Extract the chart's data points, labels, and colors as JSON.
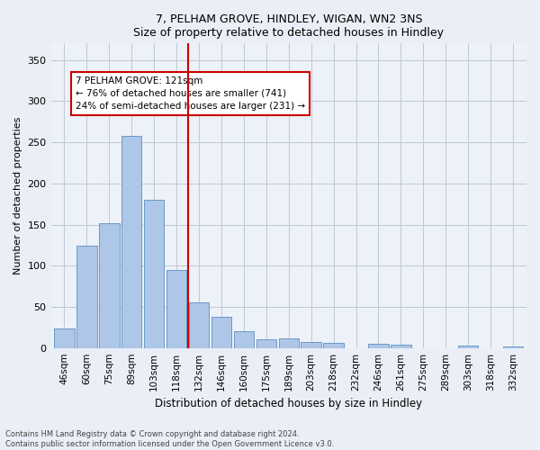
{
  "title1": "7, PELHAM GROVE, HINDLEY, WIGAN, WN2 3NS",
  "title2": "Size of property relative to detached houses in Hindley",
  "xlabel": "Distribution of detached houses by size in Hindley",
  "ylabel": "Number of detached properties",
  "categories": [
    "46sqm",
    "60sqm",
    "75sqm",
    "89sqm",
    "103sqm",
    "118sqm",
    "132sqm",
    "146sqm",
    "160sqm",
    "175sqm",
    "189sqm",
    "203sqm",
    "218sqm",
    "232sqm",
    "246sqm",
    "261sqm",
    "275sqm",
    "289sqm",
    "303sqm",
    "318sqm",
    "332sqm"
  ],
  "values": [
    24,
    124,
    152,
    258,
    180,
    95,
    55,
    38,
    20,
    11,
    12,
    7,
    6,
    0,
    5,
    4,
    0,
    0,
    3,
    0,
    2
  ],
  "bar_color": "#aec6e8",
  "bar_edge_color": "#5a8fc0",
  "vline_x_index": 5.5,
  "vline_color": "#cc0000",
  "annotation_text": "7 PELHAM GROVE: 121sqm\n← 76% of detached houses are smaller (741)\n24% of semi-detached houses are larger (231) →",
  "annotation_box_color": "#ffffff",
  "annotation_box_edge_color": "#cc0000",
  "ylim": [
    0,
    370
  ],
  "yticks": [
    0,
    50,
    100,
    150,
    200,
    250,
    300,
    350
  ],
  "footer1": "Contains HM Land Registry data © Crown copyright and database right 2024.",
  "footer2": "Contains public sector information licensed under the Open Government Licence v3.0.",
  "bg_color": "#eaeef6",
  "plot_bg_color": "#edf1f8"
}
